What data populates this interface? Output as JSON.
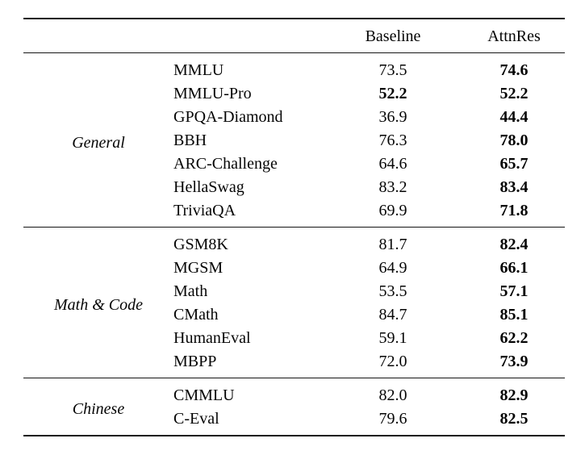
{
  "table": {
    "header": {
      "group": "",
      "metric": "",
      "baseline": "Baseline",
      "attnres": "AttnRes"
    },
    "sections": [
      {
        "group": "General",
        "rows": [
          {
            "metric": "MMLU",
            "baseline": "73.5",
            "baseline_bold": false,
            "attnres": "74.6",
            "attnres_bold": true
          },
          {
            "metric": "MMLU-Pro",
            "baseline": "52.2",
            "baseline_bold": true,
            "attnres": "52.2",
            "attnres_bold": true
          },
          {
            "metric": "GPQA-Diamond",
            "baseline": "36.9",
            "baseline_bold": false,
            "attnres": "44.4",
            "attnres_bold": true
          },
          {
            "metric": "BBH",
            "baseline": "76.3",
            "baseline_bold": false,
            "attnres": "78.0",
            "attnres_bold": true
          },
          {
            "metric": "ARC-Challenge",
            "baseline": "64.6",
            "baseline_bold": false,
            "attnres": "65.7",
            "attnres_bold": true
          },
          {
            "metric": "HellaSwag",
            "baseline": "83.2",
            "baseline_bold": false,
            "attnres": "83.4",
            "attnres_bold": true
          },
          {
            "metric": "TriviaQA",
            "baseline": "69.9",
            "baseline_bold": false,
            "attnres": "71.8",
            "attnres_bold": true
          }
        ]
      },
      {
        "group": "Math & Code",
        "rows": [
          {
            "metric": "GSM8K",
            "baseline": "81.7",
            "baseline_bold": false,
            "attnres": "82.4",
            "attnres_bold": true
          },
          {
            "metric": "MGSM",
            "baseline": "64.9",
            "baseline_bold": false,
            "attnres": "66.1",
            "attnres_bold": true
          },
          {
            "metric": "Math",
            "baseline": "53.5",
            "baseline_bold": false,
            "attnres": "57.1",
            "attnres_bold": true
          },
          {
            "metric": "CMath",
            "baseline": "84.7",
            "baseline_bold": false,
            "attnres": "85.1",
            "attnres_bold": true
          },
          {
            "metric": "HumanEval",
            "baseline": "59.1",
            "baseline_bold": false,
            "attnres": "62.2",
            "attnres_bold": true
          },
          {
            "metric": "MBPP",
            "baseline": "72.0",
            "baseline_bold": false,
            "attnres": "73.9",
            "attnres_bold": true
          }
        ]
      },
      {
        "group": "Chinese",
        "rows": [
          {
            "metric": "CMMLU",
            "baseline": "82.0",
            "baseline_bold": false,
            "attnres": "82.9",
            "attnres_bold": true
          },
          {
            "metric": "C-Eval",
            "baseline": "79.6",
            "baseline_bold": false,
            "attnres": "82.5",
            "attnres_bold": true
          }
        ]
      }
    ]
  },
  "chart_data": {
    "type": "table",
    "title": "",
    "columns": [
      "",
      "",
      "Baseline",
      "AttnRes"
    ],
    "groups": [
      "General",
      "Math & Code",
      "Chinese"
    ],
    "series": [
      {
        "name": "Baseline",
        "values": [
          73.5,
          52.2,
          36.9,
          76.3,
          64.6,
          83.2,
          69.9,
          81.7,
          64.9,
          53.5,
          84.7,
          59.1,
          72.0,
          82.0,
          79.6
        ]
      },
      {
        "name": "AttnRes",
        "values": [
          74.6,
          52.2,
          44.4,
          78.0,
          65.7,
          83.4,
          71.8,
          82.4,
          66.1,
          57.1,
          85.1,
          62.2,
          73.9,
          82.9,
          82.5
        ]
      }
    ],
    "categories": [
      "MMLU",
      "MMLU-Pro",
      "GPQA-Diamond",
      "BBH",
      "ARC-Challenge",
      "HellaSwag",
      "TriviaQA",
      "GSM8K",
      "MGSM",
      "Math",
      "CMath",
      "HumanEval",
      "MBPP",
      "CMMLU",
      "C-Eval"
    ]
  }
}
